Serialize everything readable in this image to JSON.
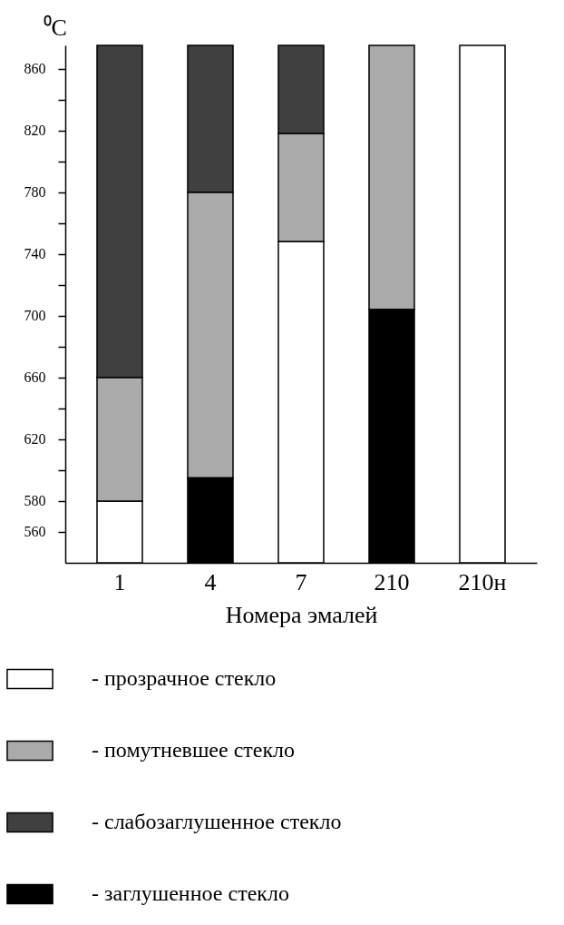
{
  "chart_data": {
    "type": "bar",
    "xlabel": "Номера эмалей",
    "ylabel": "⁰C",
    "categories": [
      "1",
      "4",
      "7",
      "210",
      "210н"
    ],
    "ylim": [
      540,
      875
    ],
    "yticks": [
      560,
      580,
      {
        "value": 600,
        "label": null
      },
      620,
      {
        "value": 640,
        "label": null
      },
      660,
      {
        "value": 680,
        "label": null
      },
      700,
      {
        "value": 720,
        "label": null
      },
      740,
      {
        "value": 760,
        "label": null
      },
      780,
      {
        "value": 800,
        "label": null
      },
      820,
      {
        "value": 840,
        "label": null
      },
      860
    ],
    "legend": "bottom",
    "grid": false,
    "series": [
      {
        "name": "- прозрачное стекло",
        "color": "#ffffff",
        "base": [
          540,
          null,
          540,
          null,
          540
        ],
        "values": [
          40,
          null,
          208,
          null,
          335
        ]
      },
      {
        "name": "- помутневшее стекло",
        "color": "#aaaaaa",
        "base": [
          580,
          595,
          748,
          704,
          null
        ],
        "values": [
          80,
          185,
          70,
          171,
          null
        ]
      },
      {
        "name": "- слабозаглушенное стекло",
        "color": "#404040",
        "base": [
          660,
          780,
          818,
          null,
          null
        ],
        "values": [
          215,
          95,
          57,
          null,
          null
        ]
      },
      {
        "name": "- заглушенное стекло",
        "color": "#000000",
        "base": [
          null,
          540,
          null,
          540,
          null
        ],
        "values": [
          null,
          55,
          null,
          164,
          null
        ]
      }
    ]
  }
}
